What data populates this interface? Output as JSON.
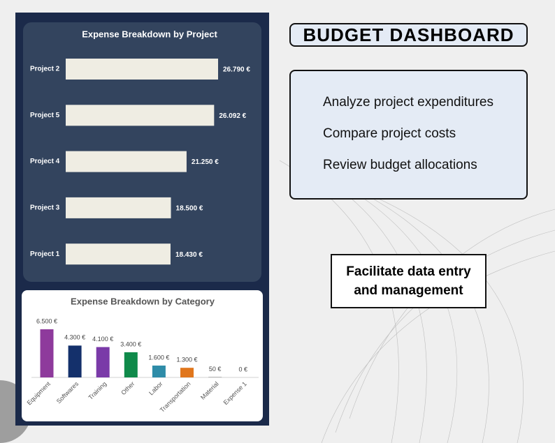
{
  "header": {
    "title": "BUDGET DASHBOARD"
  },
  "features": [
    "Analyze project expenditures",
    "Compare project costs",
    "Review budget allocations"
  ],
  "callout": "Facilitate data entry and management",
  "chart_data": [
    {
      "type": "bar",
      "orientation": "horizontal",
      "title": "Expense Breakdown by Project",
      "categories": [
        "Project 2",
        "Project 5",
        "Project 4",
        "Project 3",
        "Project 1"
      ],
      "values": [
        26790,
        26092,
        21250,
        18500,
        18430
      ],
      "value_labels": [
        "26.790 €",
        "26.092 €",
        "21.250 €",
        "18.500 €",
        "18.430 €"
      ],
      "color": "#efede3"
    },
    {
      "type": "bar",
      "orientation": "vertical",
      "title": "Expense Breakdown by Category",
      "categories": [
        "Equipment",
        "Softwares",
        "Training",
        "Other",
        "Labor",
        "Transportation",
        "Material",
        "Expense 1"
      ],
      "values": [
        6500,
        4300,
        4100,
        3400,
        1600,
        1300,
        50,
        0
      ],
      "value_labels": [
        "6.500 €",
        "4.300 €",
        "4.100 €",
        "3.400 €",
        "1.600 €",
        "1.300 €",
        "50 €",
        "0 €"
      ],
      "colors": [
        "#8e3a9c",
        "#14306b",
        "#7a3aa8",
        "#0f8a4a",
        "#2e8ca8",
        "#e0761c",
        "#7f7f7f",
        "#7f7f7f"
      ]
    }
  ]
}
